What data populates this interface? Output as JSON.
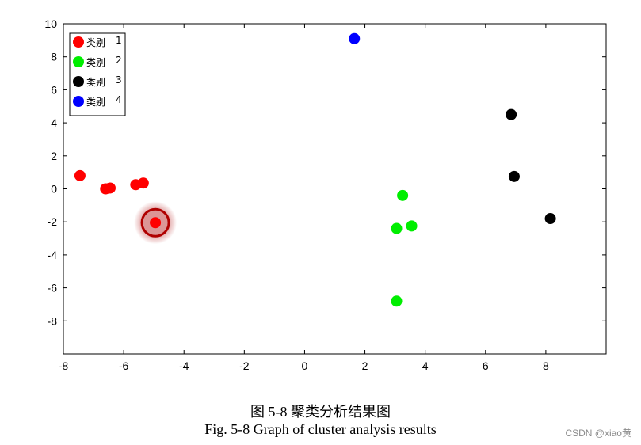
{
  "chart_data": {
    "type": "scatter",
    "xlim": [
      -8,
      10
    ],
    "ylim": [
      -10,
      10
    ],
    "x_ticks": [
      -8,
      -6,
      -4,
      -2,
      0,
      2,
      4,
      6,
      8
    ],
    "y_ticks": [
      10,
      8,
      6,
      4,
      2,
      0,
      -2,
      -4,
      -6,
      -8
    ],
    "x_tick_labels": [
      "-8",
      "-6",
      "-4",
      "-2",
      "0",
      "2",
      "4",
      "6",
      "8"
    ],
    "y_tick_labels": [
      "10",
      "8",
      "6",
      "4",
      "2",
      "0",
      "-2",
      "-4",
      "-6",
      "-8"
    ],
    "grid": false,
    "legend_position": "top-left",
    "series": [
      {
        "name": "类别",
        "number": "1",
        "color": "#ff0000",
        "points": [
          [
            -7.45,
            0.8
          ],
          [
            -6.6,
            0.0
          ],
          [
            -6.45,
            0.05
          ],
          [
            -5.6,
            0.25
          ],
          [
            -5.35,
            0.35
          ],
          [
            -4.95,
            -2.05
          ]
        ]
      },
      {
        "name": "类别",
        "number": "2",
        "color": "#00ee00",
        "points": [
          [
            3.25,
            -0.4
          ],
          [
            3.05,
            -2.4
          ],
          [
            3.55,
            -2.25
          ],
          [
            3.05,
            -6.8
          ]
        ]
      },
      {
        "name": "类别",
        "number": "3",
        "color": "#000000",
        "points": [
          [
            6.85,
            4.5
          ],
          [
            6.95,
            0.75
          ],
          [
            8.15,
            -1.8
          ]
        ]
      },
      {
        "name": "类别",
        "number": "4",
        "color": "#0000ff",
        "points": [
          [
            1.65,
            9.1
          ]
        ]
      }
    ],
    "highlight": {
      "point": [
        -4.95,
        -2.05
      ],
      "color": "#b00000"
    }
  },
  "caption": {
    "chinese": "图 5-8  聚类分析结果图",
    "english": "Fig. 5-8 Graph of cluster analysis results"
  },
  "watermark": "CSDN @xiao黄"
}
